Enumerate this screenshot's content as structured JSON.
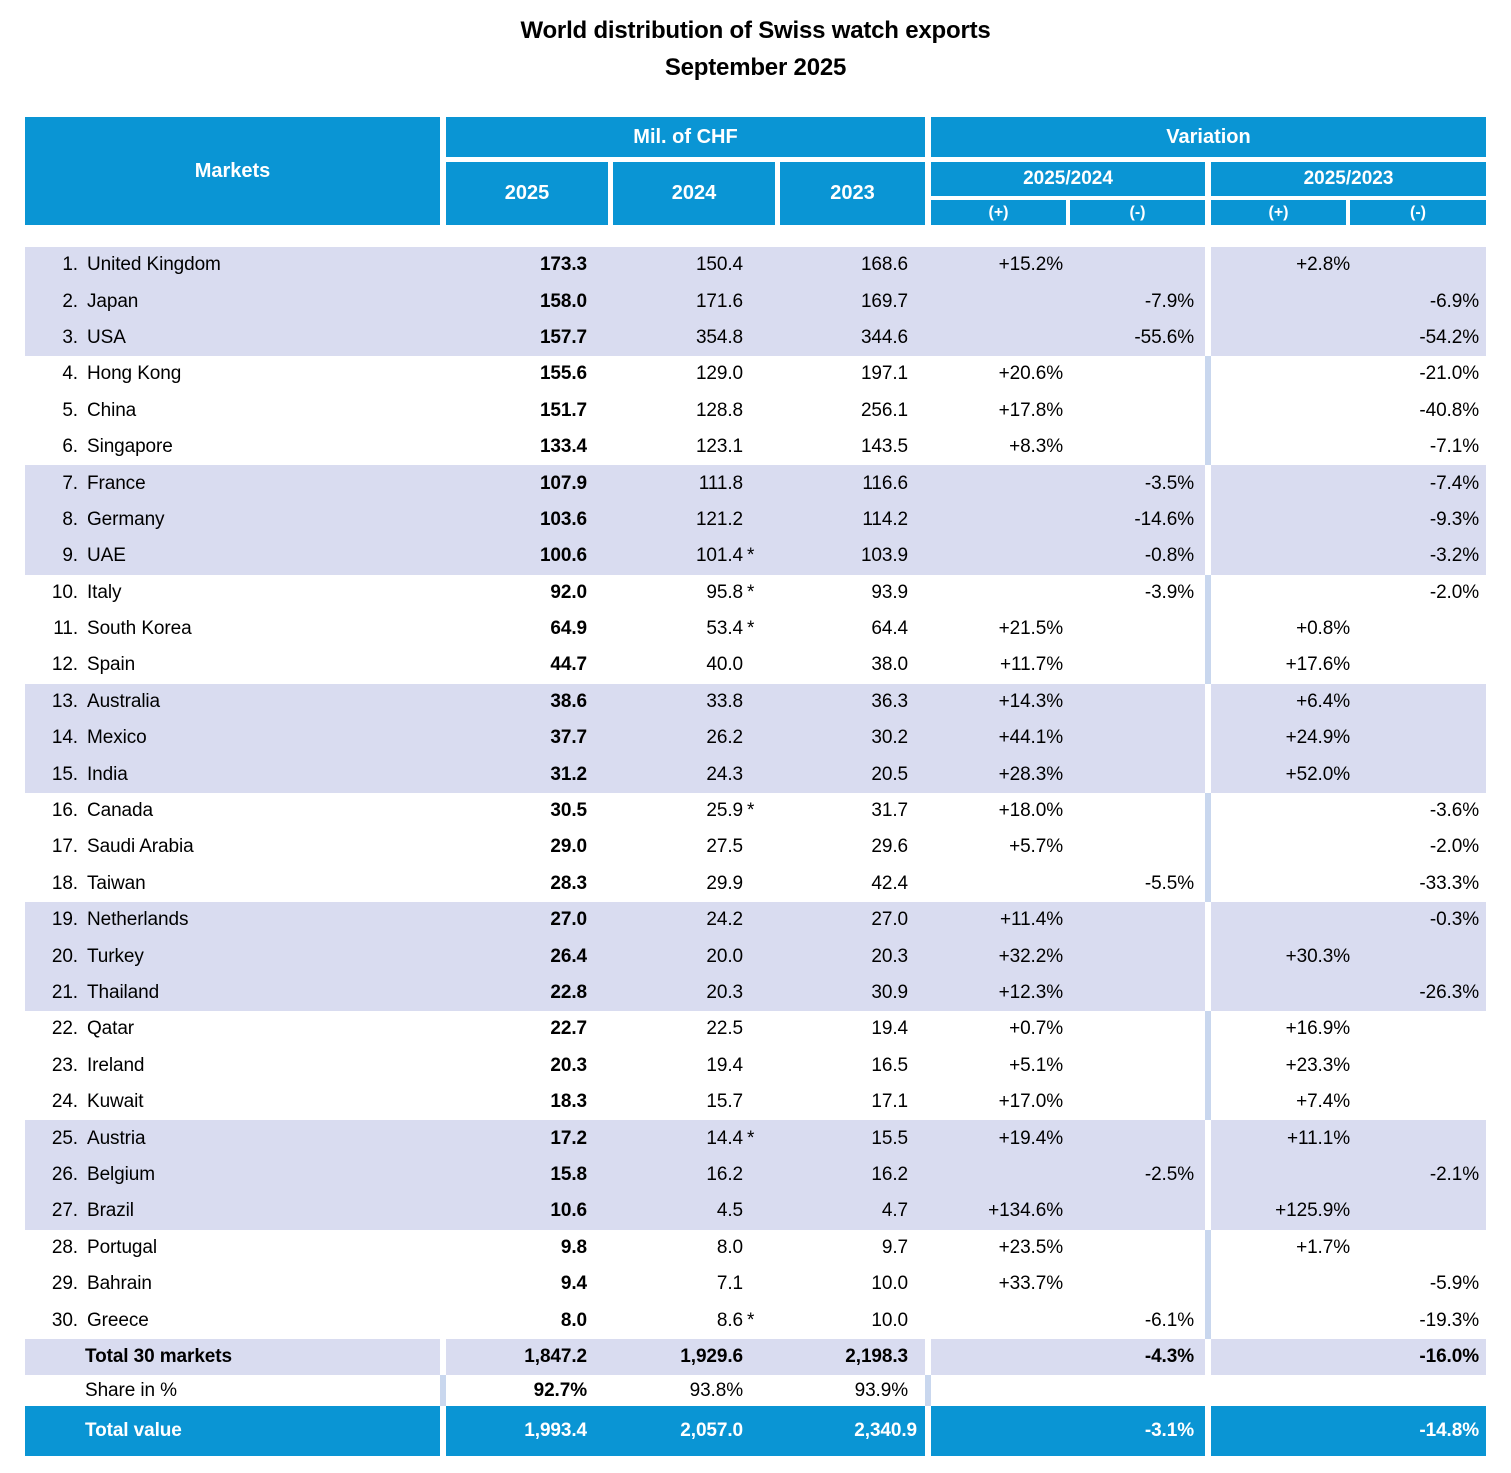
{
  "title": {
    "line1": "World distribution of Swiss watch exports",
    "line2": "September 2025"
  },
  "table": {
    "header": {
      "markets": "Markets",
      "mil_chf": "Mil. of CHF",
      "variation": "Variation",
      "years": [
        "2025",
        "2024",
        "2023"
      ],
      "var_groups": [
        "2025/2024",
        "2025/2023"
      ],
      "plus": "(+)",
      "minus": "(-)"
    },
    "colors": {
      "header_blue": "#0a95d4",
      "row_lavender": "#d9dcf0",
      "separator_pale": "#c9d7ee",
      "total_row_blue": "#0a95d4",
      "header_text": "#ffffff",
      "body_text": "#000000"
    }
  },
  "rows": [
    {
      "num": "1.",
      "name": "United Kingdom",
      "v2025": "173.3",
      "v2024": "150.4",
      "ast": "",
      "v2023": "168.6",
      "p1": "+15.2%",
      "m1": "",
      "p2": "+2.8%",
      "m2": "",
      "shade": "lav"
    },
    {
      "num": "2.",
      "name": "Japan",
      "v2025": "158.0",
      "v2024": "171.6",
      "ast": "",
      "v2023": "169.7",
      "p1": "",
      "m1": "-7.9%",
      "p2": "",
      "m2": "-6.9%",
      "shade": "lav"
    },
    {
      "num": "3.",
      "name": "USA",
      "v2025": "157.7",
      "v2024": "354.8",
      "ast": "",
      "v2023": "344.6",
      "p1": "",
      "m1": "-55.6%",
      "p2": "",
      "m2": "-54.2%",
      "shade": "lav"
    },
    {
      "num": "4.",
      "name": "Hong Kong",
      "v2025": "155.6",
      "v2024": "129.0",
      "ast": "",
      "v2023": "197.1",
      "p1": "+20.6%",
      "m1": "",
      "p2": "",
      "m2": "-21.0%",
      "shade": "white"
    },
    {
      "num": "5.",
      "name": "China",
      "v2025": "151.7",
      "v2024": "128.8",
      "ast": "",
      "v2023": "256.1",
      "p1": "+17.8%",
      "m1": "",
      "p2": "",
      "m2": "-40.8%",
      "shade": "white"
    },
    {
      "num": "6.",
      "name": "Singapore",
      "v2025": "133.4",
      "v2024": "123.1",
      "ast": "",
      "v2023": "143.5",
      "p1": "+8.3%",
      "m1": "",
      "p2": "",
      "m2": "-7.1%",
      "shade": "white"
    },
    {
      "num": "7.",
      "name": "France",
      "v2025": "107.9",
      "v2024": "111.8",
      "ast": "",
      "v2023": "116.6",
      "p1": "",
      "m1": "-3.5%",
      "p2": "",
      "m2": "-7.4%",
      "shade": "lav"
    },
    {
      "num": "8.",
      "name": "Germany",
      "v2025": "103.6",
      "v2024": "121.2",
      "ast": "",
      "v2023": "114.2",
      "p1": "",
      "m1": "-14.6%",
      "p2": "",
      "m2": "-9.3%",
      "shade": "lav"
    },
    {
      "num": "9.",
      "name": "UAE",
      "v2025": "100.6",
      "v2024": "101.4",
      "ast": "*",
      "v2023": "103.9",
      "p1": "",
      "m1": "-0.8%",
      "p2": "",
      "m2": "-3.2%",
      "shade": "lav"
    },
    {
      "num": "10.",
      "name": "Italy",
      "v2025": "92.0",
      "v2024": "95.8",
      "ast": "*",
      "v2023": "93.9",
      "p1": "",
      "m1": "-3.9%",
      "p2": "",
      "m2": "-2.0%",
      "shade": "white"
    },
    {
      "num": "11.",
      "name": "South Korea",
      "v2025": "64.9",
      "v2024": "53.4",
      "ast": "*",
      "v2023": "64.4",
      "p1": "+21.5%",
      "m1": "",
      "p2": "+0.8%",
      "m2": "",
      "shade": "white"
    },
    {
      "num": "12.",
      "name": "Spain",
      "v2025": "44.7",
      "v2024": "40.0",
      "ast": "",
      "v2023": "38.0",
      "p1": "+11.7%",
      "m1": "",
      "p2": "+17.6%",
      "m2": "",
      "shade": "white"
    },
    {
      "num": "13.",
      "name": "Australia",
      "v2025": "38.6",
      "v2024": "33.8",
      "ast": "",
      "v2023": "36.3",
      "p1": "+14.3%",
      "m1": "",
      "p2": "+6.4%",
      "m2": "",
      "shade": "lav"
    },
    {
      "num": "14.",
      "name": "Mexico",
      "v2025": "37.7",
      "v2024": "26.2",
      "ast": "",
      "v2023": "30.2",
      "p1": "+44.1%",
      "m1": "",
      "p2": "+24.9%",
      "m2": "",
      "shade": "lav"
    },
    {
      "num": "15.",
      "name": "India",
      "v2025": "31.2",
      "v2024": "24.3",
      "ast": "",
      "v2023": "20.5",
      "p1": "+28.3%",
      "m1": "",
      "p2": "+52.0%",
      "m2": "",
      "shade": "lav"
    },
    {
      "num": "16.",
      "name": "Canada",
      "v2025": "30.5",
      "v2024": "25.9",
      "ast": "*",
      "v2023": "31.7",
      "p1": "+18.0%",
      "m1": "",
      "p2": "",
      "m2": "-3.6%",
      "shade": "white"
    },
    {
      "num": "17.",
      "name": "Saudi Arabia",
      "v2025": "29.0",
      "v2024": "27.5",
      "ast": "",
      "v2023": "29.6",
      "p1": "+5.7%",
      "m1": "",
      "p2": "",
      "m2": "-2.0%",
      "shade": "white"
    },
    {
      "num": "18.",
      "name": "Taiwan",
      "v2025": "28.3",
      "v2024": "29.9",
      "ast": "",
      "v2023": "42.4",
      "p1": "",
      "m1": "-5.5%",
      "p2": "",
      "m2": "-33.3%",
      "shade": "white"
    },
    {
      "num": "19.",
      "name": "Netherlands",
      "v2025": "27.0",
      "v2024": "24.2",
      "ast": "",
      "v2023": "27.0",
      "p1": "+11.4%",
      "m1": "",
      "p2": "",
      "m2": "-0.3%",
      "shade": "lav"
    },
    {
      "num": "20.",
      "name": "Turkey",
      "v2025": "26.4",
      "v2024": "20.0",
      "ast": "",
      "v2023": "20.3",
      "p1": "+32.2%",
      "m1": "",
      "p2": "+30.3%",
      "m2": "",
      "shade": "lav"
    },
    {
      "num": "21.",
      "name": "Thailand",
      "v2025": "22.8",
      "v2024": "20.3",
      "ast": "",
      "v2023": "30.9",
      "p1": "+12.3%",
      "m1": "",
      "p2": "",
      "m2": "-26.3%",
      "shade": "lav"
    },
    {
      "num": "22.",
      "name": "Qatar",
      "v2025": "22.7",
      "v2024": "22.5",
      "ast": "",
      "v2023": "19.4",
      "p1": "+0.7%",
      "m1": "",
      "p2": "+16.9%",
      "m2": "",
      "shade": "white"
    },
    {
      "num": "23.",
      "name": "Ireland",
      "v2025": "20.3",
      "v2024": "19.4",
      "ast": "",
      "v2023": "16.5",
      "p1": "+5.1%",
      "m1": "",
      "p2": "+23.3%",
      "m2": "",
      "shade": "white"
    },
    {
      "num": "24.",
      "name": "Kuwait",
      "v2025": "18.3",
      "v2024": "15.7",
      "ast": "",
      "v2023": "17.1",
      "p1": "+17.0%",
      "m1": "",
      "p2": "+7.4%",
      "m2": "",
      "shade": "white"
    },
    {
      "num": "25.",
      "name": "Austria",
      "v2025": "17.2",
      "v2024": "14.4",
      "ast": "*",
      "v2023": "15.5",
      "p1": "+19.4%",
      "m1": "",
      "p2": "+11.1%",
      "m2": "",
      "shade": "lav"
    },
    {
      "num": "26.",
      "name": "Belgium",
      "v2025": "15.8",
      "v2024": "16.2",
      "ast": "",
      "v2023": "16.2",
      "p1": "",
      "m1": "-2.5%",
      "p2": "",
      "m2": "-2.1%",
      "shade": "lav"
    },
    {
      "num": "27.",
      "name": "Brazil",
      "v2025": "10.6",
      "v2024": "4.5",
      "ast": "",
      "v2023": "4.7",
      "p1": "+134.6%",
      "m1": "",
      "p2": "+125.9%",
      "m2": "",
      "shade": "lav"
    },
    {
      "num": "28.",
      "name": "Portugal",
      "v2025": "9.8",
      "v2024": "8.0",
      "ast": "",
      "v2023": "9.7",
      "p1": "+23.5%",
      "m1": "",
      "p2": "+1.7%",
      "m2": "",
      "shade": "white"
    },
    {
      "num": "29.",
      "name": "Bahrain",
      "v2025": "9.4",
      "v2024": "7.1",
      "ast": "",
      "v2023": "10.0",
      "p1": "+33.7%",
      "m1": "",
      "p2": "",
      "m2": "-5.9%",
      "shade": "white"
    },
    {
      "num": "30.",
      "name": "Greece",
      "v2025": "8.0",
      "v2024": "8.6",
      "ast": "*",
      "v2023": "10.0",
      "p1": "",
      "m1": "-6.1%",
      "p2": "",
      "m2": "-19.3%",
      "shade": "white"
    }
  ],
  "totals": {
    "total30": {
      "label": "Total 30 markets",
      "v2025": "1,847.2",
      "v2024": "1,929.6",
      "v2023": "2,198.3",
      "p1": "",
      "m1": "-4.3%",
      "p2": "",
      "m2": "-16.0%"
    },
    "share": {
      "label": "Share in %",
      "v2025": "92.7%",
      "v2024": "93.8%",
      "v2023": "93.9%"
    },
    "total_value": {
      "label": "Total value",
      "v2025": "1,993.4",
      "v2024": "2,057.0",
      "v2023": "2,340.9",
      "p1": "",
      "m1": "-3.1%",
      "p2": "",
      "m2": "-14.8%"
    }
  },
  "chart_data": {
    "type": "table",
    "title": "World distribution of Swiss watch exports — September 2025",
    "columns": [
      "Markets",
      "2025 (Mil. of CHF)",
      "2024 (Mil. of CHF)",
      "2023 (Mil. of CHF)",
      "Variation 2025/2024",
      "Variation 2025/2023"
    ],
    "rows": [
      [
        "1. United Kingdom",
        "173.3",
        "150.4",
        "168.6",
        "+15.2%",
        "+2.8%"
      ],
      [
        "2. Japan",
        "158.0",
        "171.6",
        "169.7",
        "-7.9%",
        "-6.9%"
      ],
      [
        "3. USA",
        "157.7",
        "354.8",
        "344.6",
        "-55.6%",
        "-54.2%"
      ],
      [
        "4. Hong Kong",
        "155.6",
        "129.0",
        "197.1",
        "+20.6%",
        "-21.0%"
      ],
      [
        "5. China",
        "151.7",
        "128.8",
        "256.1",
        "+17.8%",
        "-40.8%"
      ],
      [
        "6. Singapore",
        "133.4",
        "123.1",
        "143.5",
        "+8.3%",
        "-7.1%"
      ],
      [
        "7. France",
        "107.9",
        "111.8",
        "116.6",
        "-3.5%",
        "-7.4%"
      ],
      [
        "8. Germany",
        "103.6",
        "121.2",
        "114.2",
        "-14.6%",
        "-9.3%"
      ],
      [
        "9. UAE",
        "100.6",
        "101.4 *",
        "103.9",
        "-0.8%",
        "-3.2%"
      ],
      [
        "10. Italy",
        "92.0",
        "95.8 *",
        "93.9",
        "-3.9%",
        "-2.0%"
      ],
      [
        "11. South Korea",
        "64.9",
        "53.4 *",
        "64.4",
        "+21.5%",
        "+0.8%"
      ],
      [
        "12. Spain",
        "44.7",
        "40.0",
        "38.0",
        "+11.7%",
        "+17.6%"
      ],
      [
        "13. Australia",
        "38.6",
        "33.8",
        "36.3",
        "+14.3%",
        "+6.4%"
      ],
      [
        "14. Mexico",
        "37.7",
        "26.2",
        "30.2",
        "+44.1%",
        "+24.9%"
      ],
      [
        "15. India",
        "31.2",
        "24.3",
        "20.5",
        "+28.3%",
        "+52.0%"
      ],
      [
        "16. Canada",
        "30.5",
        "25.9 *",
        "31.7",
        "+18.0%",
        "-3.6%"
      ],
      [
        "17. Saudi Arabia",
        "29.0",
        "27.5",
        "29.6",
        "+5.7%",
        "-2.0%"
      ],
      [
        "18. Taiwan",
        "28.3",
        "29.9",
        "42.4",
        "-5.5%",
        "-33.3%"
      ],
      [
        "19. Netherlands",
        "27.0",
        "24.2",
        "27.0",
        "+11.4%",
        "-0.3%"
      ],
      [
        "20. Turkey",
        "26.4",
        "20.0",
        "20.3",
        "+32.2%",
        "+30.3%"
      ],
      [
        "21. Thailand",
        "22.8",
        "20.3",
        "30.9",
        "+12.3%",
        "-26.3%"
      ],
      [
        "22. Qatar",
        "22.7",
        "22.5",
        "19.4",
        "+0.7%",
        "+16.9%"
      ],
      [
        "23. Ireland",
        "20.3",
        "19.4",
        "16.5",
        "+5.1%",
        "+23.3%"
      ],
      [
        "24. Kuwait",
        "18.3",
        "15.7",
        "17.1",
        "+17.0%",
        "+7.4%"
      ],
      [
        "25. Austria",
        "17.2",
        "14.4 *",
        "15.5",
        "+19.4%",
        "+11.1%"
      ],
      [
        "26. Belgium",
        "15.8",
        "16.2",
        "16.2",
        "-2.5%",
        "-2.1%"
      ],
      [
        "27. Brazil",
        "10.6",
        "4.5",
        "4.7",
        "+134.6%",
        "+125.9%"
      ],
      [
        "28. Portugal",
        "9.8",
        "8.0",
        "9.7",
        "+23.5%",
        "+1.7%"
      ],
      [
        "29. Bahrain",
        "9.4",
        "7.1",
        "10.0",
        "+33.7%",
        "-5.9%"
      ],
      [
        "30. Greece",
        "8.0",
        "8.6 *",
        "10.0",
        "-6.1%",
        "-19.3%"
      ],
      [
        "Total 30 markets",
        "1,847.2",
        "1,929.6",
        "2,198.3",
        "-4.3%",
        "-16.0%"
      ],
      [
        "Share in %",
        "92.7%",
        "93.8%",
        "93.9%",
        "",
        ""
      ],
      [
        "Total value",
        "1,993.4",
        "2,057.0",
        "2,340.9",
        "-3.1%",
        "-14.8%"
      ]
    ]
  }
}
